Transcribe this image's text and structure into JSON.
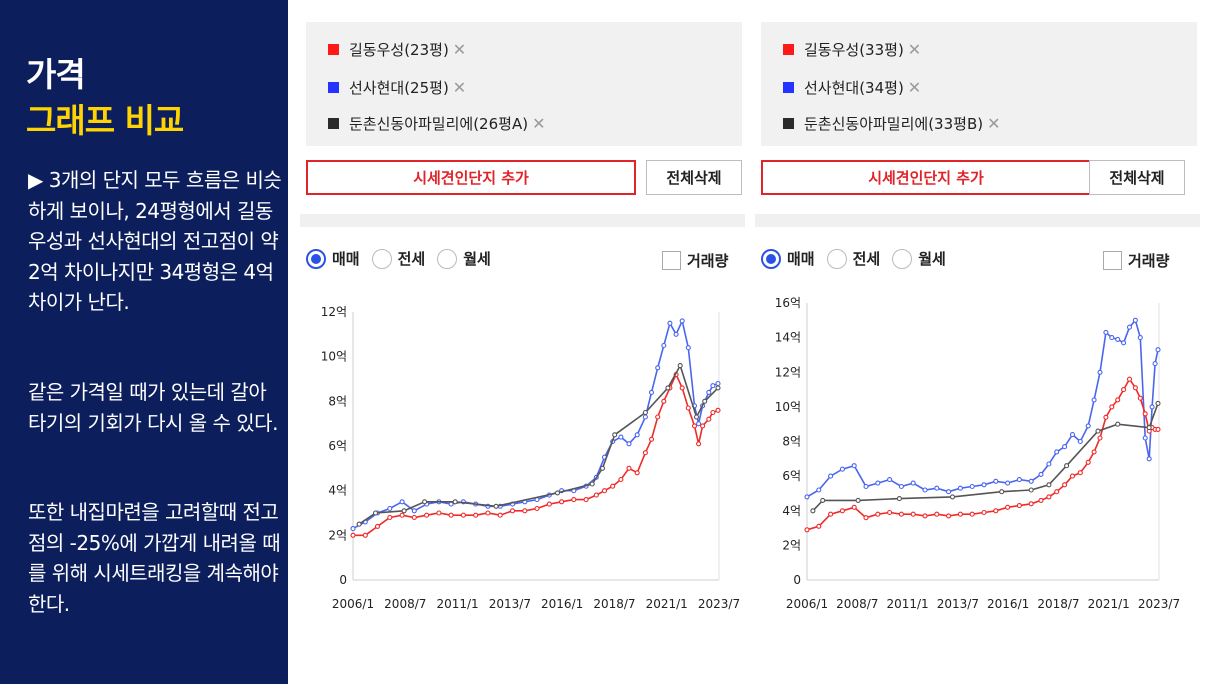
{
  "left": {
    "title1": "가격",
    "title2": "그래프 비교",
    "para1": "▶ 3개의 단지 모두 흐름은 비슷하게 보이나, 24평형에서 길동우성과 선사현대의 전고점이 약 2억 차이나지만 34평형은 4억 차이가 난다.",
    "para2": "같은 가격일 때가 있는데 갈아타기의 기회가 다시 올 수 있다.",
    "para3": "또한 내집마련을 고려할때 전고점의 -25%에 가깝게 내려올 때를 위해 시세트래킹을 계속해야한다."
  },
  "ui": {
    "add_button": "시세견인단지 추가",
    "delete_button": "전체삭제",
    "remove_glyph": "✕",
    "radio_buy": "매매",
    "radio_jeonse": "전세",
    "radio_monthly": "월세",
    "volume": "거래량"
  },
  "panels": [
    {
      "items": [
        {
          "label": "길동우성(23평)",
          "color": "#ff1a1a"
        },
        {
          "label": "선사현대(25평)",
          "color": "#2433ff"
        },
        {
          "label": "둔촌신동아파밀리에(26평A)",
          "color": "#2b2b2b"
        }
      ]
    },
    {
      "items": [
        {
          "label": "길동우성(33평)",
          "color": "#ff1a1a"
        },
        {
          "label": "선사현대(34평)",
          "color": "#2433ff"
        },
        {
          "label": "둔촌신동아파밀리에(33평B)",
          "color": "#2b2b2b"
        }
      ]
    }
  ],
  "chart_data": [
    {
      "type": "line",
      "x_ticks": [
        "2006/1",
        "2008/7",
        "2011/1",
        "2013/7",
        "2016/1",
        "2018/7",
        "2021/1",
        "2023/7"
      ],
      "y_ticks": [
        "0",
        "2억",
        "4억",
        "6억",
        "8억",
        "10억",
        "12억"
      ],
      "ylim": [
        0,
        12
      ],
      "xlim": [
        2006.0,
        2023.9
      ],
      "series": [
        {
          "name": "선사현대(25평)",
          "color": "#4a66f0",
          "points": [
            [
              2006.0,
              2.3
            ],
            [
              2006.6,
              2.6
            ],
            [
              2007.2,
              3.0
            ],
            [
              2007.8,
              3.2
            ],
            [
              2008.4,
              3.5
            ],
            [
              2009.0,
              3.1
            ],
            [
              2009.6,
              3.4
            ],
            [
              2010.2,
              3.5
            ],
            [
              2010.8,
              3.4
            ],
            [
              2011.4,
              3.5
            ],
            [
              2012.0,
              3.4
            ],
            [
              2012.6,
              3.3
            ],
            [
              2013.2,
              3.3
            ],
            [
              2013.8,
              3.4
            ],
            [
              2014.4,
              3.5
            ],
            [
              2015.0,
              3.6
            ],
            [
              2015.6,
              3.8
            ],
            [
              2016.2,
              4.0
            ],
            [
              2016.8,
              4.0
            ],
            [
              2017.4,
              4.2
            ],
            [
              2017.9,
              4.6
            ],
            [
              2018.3,
              5.5
            ],
            [
              2018.7,
              6.2
            ],
            [
              2019.1,
              6.4
            ],
            [
              2019.5,
              6.1
            ],
            [
              2019.9,
              6.5
            ],
            [
              2020.3,
              7.3
            ],
            [
              2020.6,
              8.4
            ],
            [
              2020.9,
              9.5
            ],
            [
              2021.2,
              10.5
            ],
            [
              2021.5,
              11.5
            ],
            [
              2021.8,
              11.0
            ],
            [
              2022.1,
              11.6
            ],
            [
              2022.4,
              10.4
            ],
            [
              2022.7,
              7.8
            ],
            [
              2022.9,
              7.0
            ],
            [
              2023.1,
              7.8
            ],
            [
              2023.4,
              8.4
            ],
            [
              2023.6,
              8.7
            ],
            [
              2023.85,
              8.8
            ]
          ]
        },
        {
          "name": "길동우성(23평)",
          "color": "#f02a2a",
          "points": [
            [
              2006.0,
              2.0
            ],
            [
              2006.6,
              2.0
            ],
            [
              2007.2,
              2.4
            ],
            [
              2007.8,
              2.8
            ],
            [
              2008.4,
              2.9
            ],
            [
              2009.0,
              2.8
            ],
            [
              2009.6,
              2.9
            ],
            [
              2010.2,
              3.0
            ],
            [
              2010.8,
              2.9
            ],
            [
              2011.4,
              2.9
            ],
            [
              2012.0,
              2.9
            ],
            [
              2012.6,
              3.0
            ],
            [
              2013.2,
              2.9
            ],
            [
              2013.8,
              3.1
            ],
            [
              2014.4,
              3.1
            ],
            [
              2015.0,
              3.2
            ],
            [
              2015.6,
              3.4
            ],
            [
              2016.2,
              3.5
            ],
            [
              2016.8,
              3.6
            ],
            [
              2017.4,
              3.6
            ],
            [
              2017.9,
              3.8
            ],
            [
              2018.3,
              4.0
            ],
            [
              2018.7,
              4.2
            ],
            [
              2019.1,
              4.5
            ],
            [
              2019.5,
              5.0
            ],
            [
              2019.9,
              4.8
            ],
            [
              2020.3,
              5.7
            ],
            [
              2020.6,
              6.3
            ],
            [
              2020.9,
              7.3
            ],
            [
              2021.2,
              8.0
            ],
            [
              2021.5,
              8.6
            ],
            [
              2021.8,
              9.2
            ],
            [
              2022.1,
              8.6
            ],
            [
              2022.4,
              7.7
            ],
            [
              2022.7,
              6.9
            ],
            [
              2022.9,
              6.1
            ],
            [
              2023.1,
              6.9
            ],
            [
              2023.4,
              7.2
            ],
            [
              2023.6,
              7.5
            ],
            [
              2023.85,
              7.6
            ]
          ]
        },
        {
          "name": "둔촌신동아파밀리에(26평A)",
          "color": "#555555",
          "points": [
            [
              2006.3,
              2.5
            ],
            [
              2007.1,
              3.0
            ],
            [
              2008.5,
              3.1
            ],
            [
              2009.5,
              3.5
            ],
            [
              2011.0,
              3.5
            ],
            [
              2013.0,
              3.3
            ],
            [
              2016.0,
              3.9
            ],
            [
              2017.7,
              4.3
            ],
            [
              2018.2,
              5.0
            ],
            [
              2018.8,
              6.5
            ],
            [
              2020.3,
              7.5
            ],
            [
              2021.4,
              8.6
            ],
            [
              2022.0,
              9.6
            ],
            [
              2022.8,
              7.3
            ],
            [
              2023.2,
              8.0
            ],
            [
              2023.85,
              8.6
            ]
          ]
        }
      ]
    },
    {
      "type": "line",
      "x_ticks": [
        "2006/1",
        "2008/7",
        "2011/1",
        "2013/7",
        "2016/1",
        "2018/7",
        "2021/1",
        "2023/7"
      ],
      "y_ticks": [
        "0",
        "2억",
        "4억",
        "6억",
        "8억",
        "10억",
        "12억",
        "14억",
        "16억"
      ],
      "ylim": [
        0,
        16
      ],
      "xlim": [
        2006.0,
        2023.9
      ],
      "series": [
        {
          "name": "선사현대(34평)",
          "color": "#4a66f0",
          "points": [
            [
              2006.0,
              4.8
            ],
            [
              2006.6,
              5.2
            ],
            [
              2007.2,
              6.0
            ],
            [
              2007.8,
              6.4
            ],
            [
              2008.4,
              6.6
            ],
            [
              2009.0,
              5.4
            ],
            [
              2009.6,
              5.6
            ],
            [
              2010.2,
              5.8
            ],
            [
              2010.8,
              5.4
            ],
            [
              2011.4,
              5.6
            ],
            [
              2012.0,
              5.2
            ],
            [
              2012.6,
              5.3
            ],
            [
              2013.2,
              5.1
            ],
            [
              2013.8,
              5.3
            ],
            [
              2014.4,
              5.4
            ],
            [
              2015.0,
              5.5
            ],
            [
              2015.6,
              5.7
            ],
            [
              2016.2,
              5.6
            ],
            [
              2016.8,
              5.8
            ],
            [
              2017.4,
              5.7
            ],
            [
              2017.9,
              6.1
            ],
            [
              2018.3,
              6.7
            ],
            [
              2018.7,
              7.4
            ],
            [
              2019.1,
              7.7
            ],
            [
              2019.5,
              8.4
            ],
            [
              2019.9,
              8.0
            ],
            [
              2020.3,
              8.9
            ],
            [
              2020.6,
              10.4
            ],
            [
              2020.9,
              12.0
            ],
            [
              2021.2,
              14.3
            ],
            [
              2021.5,
              14.0
            ],
            [
              2021.8,
              13.9
            ],
            [
              2022.1,
              13.7
            ],
            [
              2022.4,
              14.6
            ],
            [
              2022.7,
              15.0
            ],
            [
              2022.95,
              14.0
            ],
            [
              2023.2,
              8.2
            ],
            [
              2023.4,
              7.0
            ],
            [
              2023.55,
              10.0
            ],
            [
              2023.7,
              12.5
            ],
            [
              2023.85,
              13.3
            ]
          ]
        },
        {
          "name": "길동우성(33평)",
          "color": "#f02a2a",
          "points": [
            [
              2006.0,
              2.9
            ],
            [
              2006.6,
              3.1
            ],
            [
              2007.2,
              3.8
            ],
            [
              2007.8,
              4.0
            ],
            [
              2008.4,
              4.2
            ],
            [
              2009.0,
              3.6
            ],
            [
              2009.6,
              3.8
            ],
            [
              2010.2,
              3.9
            ],
            [
              2010.8,
              3.8
            ],
            [
              2011.4,
              3.8
            ],
            [
              2012.0,
              3.7
            ],
            [
              2012.6,
              3.8
            ],
            [
              2013.2,
              3.7
            ],
            [
              2013.8,
              3.8
            ],
            [
              2014.4,
              3.8
            ],
            [
              2015.0,
              3.9
            ],
            [
              2015.6,
              4.0
            ],
            [
              2016.2,
              4.2
            ],
            [
              2016.8,
              4.3
            ],
            [
              2017.4,
              4.4
            ],
            [
              2017.9,
              4.6
            ],
            [
              2018.3,
              4.8
            ],
            [
              2018.7,
              5.1
            ],
            [
              2019.1,
              5.5
            ],
            [
              2019.5,
              6.0
            ],
            [
              2019.9,
              6.2
            ],
            [
              2020.3,
              6.8
            ],
            [
              2020.6,
              7.4
            ],
            [
              2020.9,
              8.2
            ],
            [
              2021.2,
              9.4
            ],
            [
              2021.5,
              10.0
            ],
            [
              2021.8,
              10.4
            ],
            [
              2022.1,
              11.0
            ],
            [
              2022.4,
              11.6
            ],
            [
              2022.7,
              11.1
            ],
            [
              2022.95,
              10.5
            ],
            [
              2023.2,
              9.6
            ],
            [
              2023.4,
              8.6
            ],
            [
              2023.55,
              8.8
            ],
            [
              2023.7,
              8.7
            ],
            [
              2023.85,
              8.7
            ]
          ]
        },
        {
          "name": "둔촌신동아파밀리에(33평B)",
          "color": "#555555",
          "points": [
            [
              2006.3,
              4.0
            ],
            [
              2006.8,
              4.6
            ],
            [
              2008.6,
              4.6
            ],
            [
              2010.7,
              4.7
            ],
            [
              2013.4,
              4.8
            ],
            [
              2015.9,
              5.1
            ],
            [
              2017.4,
              5.2
            ],
            [
              2018.3,
              5.5
            ],
            [
              2019.2,
              6.6
            ],
            [
              2020.8,
              8.6
            ],
            [
              2021.8,
              9.0
            ],
            [
              2023.4,
              8.8
            ],
            [
              2023.85,
              10.2
            ]
          ]
        }
      ]
    }
  ]
}
